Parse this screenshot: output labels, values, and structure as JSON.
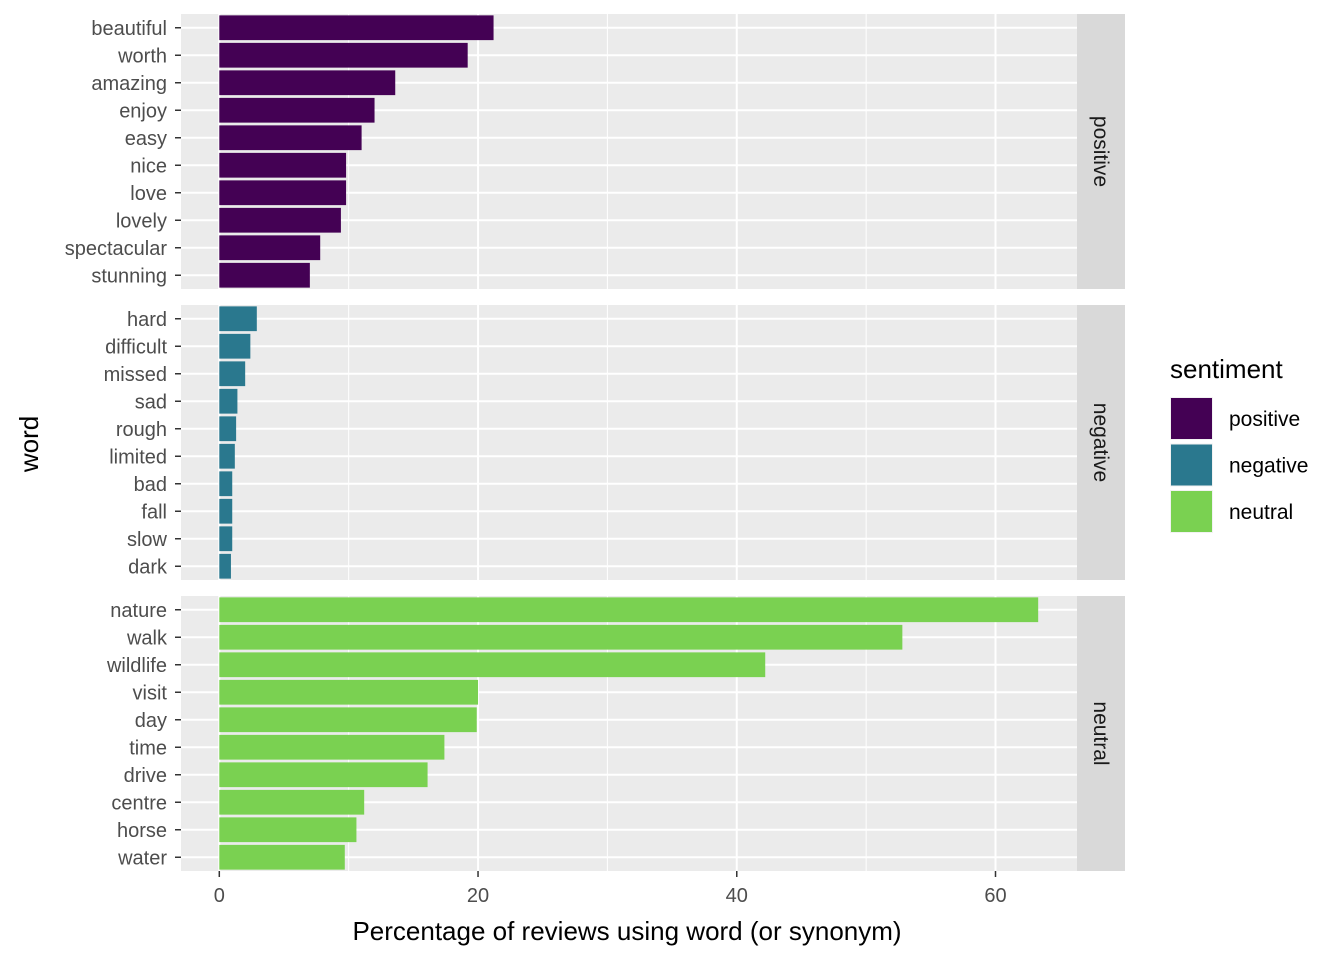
{
  "chart_data": {
    "type": "bar",
    "orientation": "horizontal",
    "title": "",
    "xlabel": "Percentage of reviews using word (or synonym)",
    "ylabel": "word",
    "xlim": [
      0,
      66.5
    ],
    "x_ticks": [
      0,
      20,
      40,
      60
    ],
    "grid": true,
    "legend": {
      "title": "sentiment",
      "placement": "right",
      "entries": [
        {
          "label": "positive",
          "color": "#440154"
        },
        {
          "label": "negative",
          "color": "#2A788E"
        },
        {
          "label": "neutral",
          "color": "#7AD151"
        }
      ]
    },
    "facets": [
      {
        "name": "positive",
        "color": "#440154",
        "categories": [
          "beautiful",
          "worth",
          "amazing",
          "enjoy",
          "easy",
          "nice",
          "love",
          "lovely",
          "spectacular",
          "stunning"
        ],
        "values": [
          21.2,
          19.2,
          13.6,
          12.0,
          11.0,
          9.8,
          9.8,
          9.4,
          7.8,
          7.0
        ]
      },
      {
        "name": "negative",
        "color": "#2A788E",
        "categories": [
          "hard",
          "difficult",
          "missed",
          "sad",
          "rough",
          "limited",
          "bad",
          "fall",
          "slow",
          "dark"
        ],
        "values": [
          2.9,
          2.4,
          2.0,
          1.4,
          1.3,
          1.2,
          1.0,
          1.0,
          1.0,
          0.9
        ]
      },
      {
        "name": "neutral",
        "color": "#7AD151",
        "categories": [
          "nature",
          "walk",
          "wildlife",
          "visit",
          "day",
          "time",
          "drive",
          "centre",
          "horse",
          "water"
        ],
        "values": [
          63.3,
          52.8,
          42.2,
          20.0,
          19.9,
          17.4,
          16.1,
          11.2,
          10.6,
          9.7
        ]
      }
    ]
  }
}
